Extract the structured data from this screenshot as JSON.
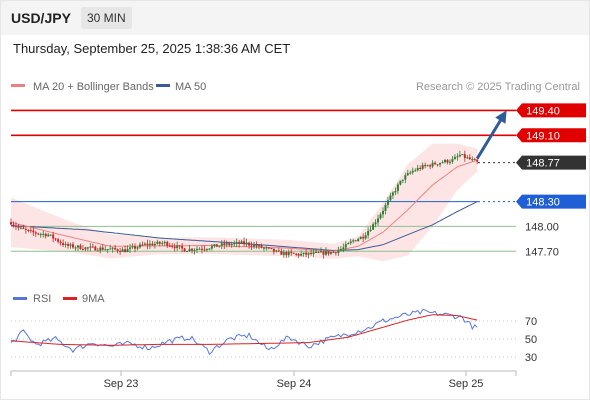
{
  "header": {
    "symbol": "USD/JPY",
    "interval": "30 MIN",
    "datetime": "Thursday, September 25, 2025 1:38:36 AM CET"
  },
  "legend": {
    "bb_label": "MA 20 + Bollinger Bands",
    "ma50_label": "MA 50",
    "credit": "Research © 2025 Trading Central"
  },
  "colors": {
    "bull": "#2e7d32",
    "bear": "#c62828",
    "ma20": "#f08080",
    "band_fill": "#fde0e0",
    "ma50": "#3a5a99",
    "resistance": "#e00000",
    "pivot": "#1f5fd6",
    "support": "#8cc28c",
    "last_price": "#333333",
    "arrow": "#2f5b9a",
    "rsi": "#5577dd",
    "rsi_ma": "#dd2222"
  },
  "chart_data": [
    {
      "type": "candlestick",
      "ylim": [
        147.45,
        149.55
      ],
      "x_ticks": [
        "Sep 23",
        "Sep 24",
        "Sep 25"
      ],
      "levels": [
        {
          "label": "149.40",
          "value": 149.4,
          "kind": "resistance"
        },
        {
          "label": "149.10",
          "value": 149.1,
          "kind": "resistance"
        },
        {
          "label": "148.77",
          "value": 148.77,
          "kind": "last"
        },
        {
          "label": "148.30",
          "value": 148.3,
          "kind": "pivot"
        },
        {
          "label": "148.00",
          "value": 148.0,
          "kind": "support"
        },
        {
          "label": "147.70",
          "value": 147.7,
          "kind": "support"
        }
      ],
      "close_anchors": [
        [
          0,
          148.05
        ],
        [
          3,
          147.98
        ],
        [
          8,
          147.93
        ],
        [
          15,
          147.9
        ],
        [
          22,
          147.77
        ],
        [
          30,
          147.74
        ],
        [
          38,
          147.73
        ],
        [
          46,
          147.71
        ],
        [
          54,
          147.78
        ],
        [
          62,
          147.8
        ],
        [
          70,
          147.72
        ],
        [
          78,
          147.74
        ],
        [
          86,
          147.78
        ],
        [
          94,
          147.8
        ],
        [
          102,
          147.74
        ],
        [
          108,
          147.68
        ],
        [
          116,
          147.66
        ],
        [
          122,
          147.67
        ],
        [
          126,
          147.68
        ],
        [
          130,
          147.69
        ],
        [
          134,
          147.74
        ],
        [
          138,
          147.83
        ],
        [
          142,
          147.88
        ],
        [
          146,
          148.02
        ],
        [
          150,
          148.2
        ],
        [
          154,
          148.4
        ],
        [
          158,
          148.58
        ],
        [
          162,
          148.67
        ],
        [
          166,
          148.72
        ],
        [
          170,
          148.75
        ],
        [
          174,
          148.78
        ],
        [
          178,
          148.8
        ],
        [
          181,
          148.86
        ],
        [
          185,
          148.81
        ],
        [
          188,
          148.77
        ]
      ],
      "ma20_anchors": [
        [
          0,
          148.05
        ],
        [
          20,
          147.9
        ],
        [
          40,
          147.76
        ],
        [
          80,
          147.77
        ],
        [
          110,
          147.74
        ],
        [
          130,
          147.7
        ],
        [
          140,
          147.76
        ],
        [
          150,
          147.93
        ],
        [
          160,
          148.2
        ],
        [
          170,
          148.5
        ],
        [
          180,
          148.72
        ],
        [
          188,
          148.8
        ]
      ],
      "band_width_anchors": [
        [
          0,
          0.3
        ],
        [
          25,
          0.18
        ],
        [
          60,
          0.1
        ],
        [
          110,
          0.1
        ],
        [
          130,
          0.09
        ],
        [
          140,
          0.12
        ],
        [
          150,
          0.35
        ],
        [
          160,
          0.55
        ],
        [
          170,
          0.5
        ],
        [
          180,
          0.28
        ],
        [
          188,
          0.14
        ]
      ],
      "ma50_anchors": [
        [
          0,
          148.01
        ],
        [
          30,
          147.96
        ],
        [
          60,
          147.86
        ],
        [
          100,
          147.78
        ],
        [
          130,
          147.71
        ],
        [
          140,
          147.72
        ],
        [
          150,
          147.78
        ],
        [
          160,
          147.9
        ],
        [
          170,
          148.02
        ],
        [
          180,
          148.18
        ],
        [
          188,
          148.3
        ]
      ],
      "forecast_arrow": {
        "from": [
          188,
          148.82
        ],
        "to": [
          199,
          149.36
        ]
      }
    },
    {
      "type": "line",
      "name_label": "RSI",
      "ma_label": "9MA",
      "ylim": [
        20,
        80
      ],
      "y_ticks": [
        70,
        50,
        30
      ],
      "rsi_anchors": [
        [
          0,
          45
        ],
        [
          5,
          58
        ],
        [
          10,
          44
        ],
        [
          18,
          50
        ],
        [
          25,
          38
        ],
        [
          33,
          46
        ],
        [
          40,
          42
        ],
        [
          48,
          45
        ],
        [
          56,
          40
        ],
        [
          64,
          48
        ],
        [
          72,
          52
        ],
        [
          80,
          36
        ],
        [
          88,
          50
        ],
        [
          96,
          54
        ],
        [
          104,
          38
        ],
        [
          112,
          52
        ],
        [
          120,
          42
        ],
        [
          128,
          50
        ],
        [
          136,
          56
        ],
        [
          144,
          62
        ],
        [
          150,
          70
        ],
        [
          158,
          76
        ],
        [
          166,
          80
        ],
        [
          172,
          78
        ],
        [
          178,
          76
        ],
        [
          182,
          74
        ],
        [
          186,
          64
        ],
        [
          188,
          62
        ]
      ],
      "ma_anchors": [
        [
          0,
          48
        ],
        [
          20,
          44
        ],
        [
          40,
          43
        ],
        [
          60,
          44
        ],
        [
          80,
          44
        ],
        [
          100,
          45
        ],
        [
          120,
          46
        ],
        [
          136,
          52
        ],
        [
          150,
          63
        ],
        [
          160,
          71
        ],
        [
          170,
          77
        ],
        [
          180,
          76
        ],
        [
          188,
          71
        ]
      ]
    }
  ]
}
